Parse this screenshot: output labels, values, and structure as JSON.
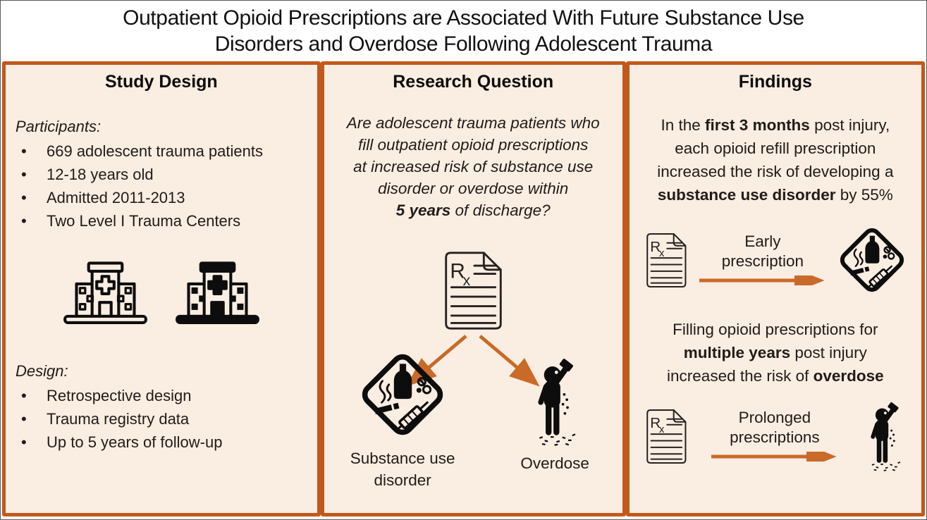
{
  "colors": {
    "panel_border": "#C0591B",
    "panel_bg": "#FAEDE2",
    "arrow_color": "#C96A28",
    "icon_color": "#0D0D0D",
    "text_color": "#211C18",
    "title_color": "#111111",
    "page_bg": "#FFFFFF"
  },
  "title": {
    "line1": "Outpatient Opioid Prescriptions are Associated With Future Substance Use",
    "line2": "Disorders and Overdose Following Adolescent Trauma"
  },
  "study_design": {
    "heading": "Study Design",
    "participants_label": "Participants:",
    "participants_items": [
      "669 adolescent trauma patients",
      "12-18 years old",
      "Admitted 2011-2013",
      "Two Level I Trauma Centers"
    ],
    "icons": {
      "left": "hospital-outline-icon",
      "right": "hospital-filled-icon"
    },
    "design_label": "Design:",
    "design_items": [
      "Retrospective design",
      "Trauma registry data",
      "Up to 5 years of follow-up"
    ]
  },
  "research_question": {
    "heading": "Research Question",
    "question_segments": [
      {
        "t": "Are adolescent trauma patients who"
      },
      {
        "br": true
      },
      {
        "t": "fill outpatient opioid prescriptions"
      },
      {
        "br": true
      },
      {
        "t": "at increased risk of substance use"
      },
      {
        "br": true
      },
      {
        "t": "disorder or overdose within"
      },
      {
        "br": true
      },
      {
        "t": "5 years",
        "b": true
      },
      {
        "t": " of discharge?"
      }
    ],
    "icons": {
      "top": "rx-prescription-icon",
      "left": "substance-use-warning-icon",
      "right": "overdose-person-icon"
    },
    "outcome_left_label": "Substance use disorder",
    "outcome_right_label": "Overdose"
  },
  "findings": {
    "heading": "Findings",
    "finding1_segments": [
      {
        "t": "In the "
      },
      {
        "t": "first 3 months",
        "b": true
      },
      {
        "t": " post injury,"
      },
      {
        "br": true
      },
      {
        "t": "each opioid refill prescription"
      },
      {
        "br": true
      },
      {
        "t": "increased the risk of developing a"
      },
      {
        "br": true
      },
      {
        "t": "substance use disorder",
        "b": true
      },
      {
        "t": " by 55%"
      }
    ],
    "arrow1_label_line1": "Early",
    "arrow1_label_line2": "prescription",
    "finding2_segments": [
      {
        "t": "Filling opioid prescriptions for"
      },
      {
        "br": true
      },
      {
        "t": "multiple years",
        "b": true
      },
      {
        "t": " post injury"
      },
      {
        "br": true
      },
      {
        "t": "increased the risk of "
      },
      {
        "t": "overdose",
        "b": true
      }
    ],
    "arrow2_label_line1": "Prolonged",
    "arrow2_label_line2": "prescriptions"
  }
}
